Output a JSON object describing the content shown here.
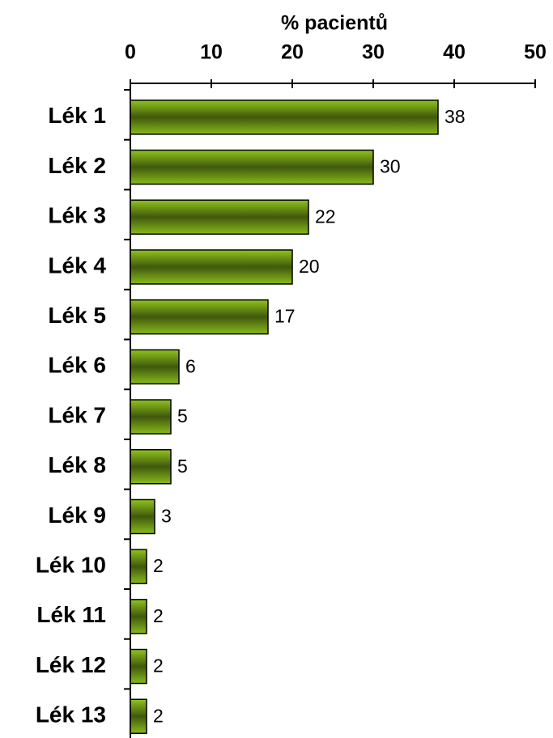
{
  "chart_data": {
    "type": "barh",
    "title": "% pacientů",
    "categories": [
      "Lék 1",
      "Lék 2",
      "Lék 3",
      "Lék 4",
      "Lék 5",
      "Lék 6",
      "Lék 7",
      "Lék 8",
      "Lék 9",
      "Lék 10",
      "Lék 11",
      "Lék 12",
      "Lék 13"
    ],
    "values": [
      38,
      30,
      22,
      20,
      17,
      6,
      5,
      5,
      3,
      2,
      2,
      2,
      2
    ],
    "color": "#8fc41c",
    "xlim": [
      0,
      50
    ],
    "xticks": [
      0,
      10,
      20,
      30,
      40,
      50
    ],
    "grid": false
  }
}
